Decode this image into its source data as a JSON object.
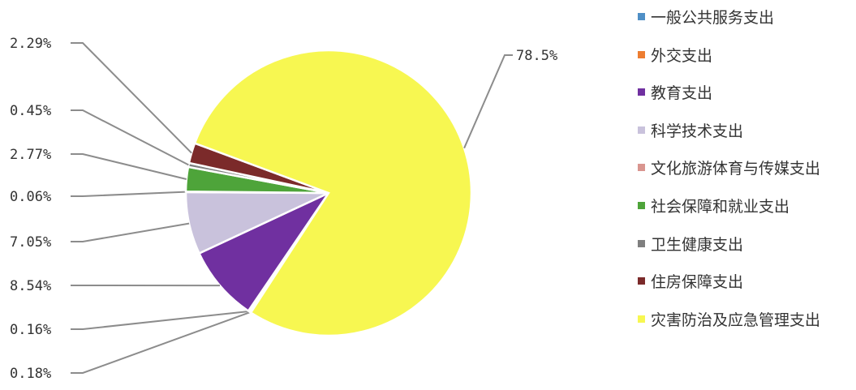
{
  "chart_data": {
    "type": "pie",
    "title": "",
    "slices": [
      {
        "name": "一般公共服务支出",
        "value": 0.18,
        "label": "0.18%",
        "color": "#4f8fc6"
      },
      {
        "name": "外交支出",
        "value": 0.16,
        "label": "0.16%",
        "color": "#ed7d31"
      },
      {
        "name": "教育支出",
        "value": 8.54,
        "label": "8.54%",
        "color": "#7030a0"
      },
      {
        "name": "科学技术支出",
        "value": 7.05,
        "label": "7.05%",
        "color": "#c9c2dc"
      },
      {
        "name": "文化旅游体育与传媒支出",
        "value": 0.06,
        "label": "0.06%",
        "color": "#d9958f"
      },
      {
        "name": "社会保障和就业支出",
        "value": 2.77,
        "label": "2.77%",
        "color": "#4ea43a"
      },
      {
        "name": "卫生健康支出",
        "value": 0.45,
        "label": "0.45%",
        "color": "#7f7f7f"
      },
      {
        "name": "住房保障支出",
        "value": 2.29,
        "label": "2.29%",
        "color": "#7b2a2a"
      },
      {
        "name": "灾害防治及应急管理支出",
        "value": 78.5,
        "label": "78.5%",
        "color": "#f7f751"
      }
    ],
    "legend_position": "right"
  }
}
